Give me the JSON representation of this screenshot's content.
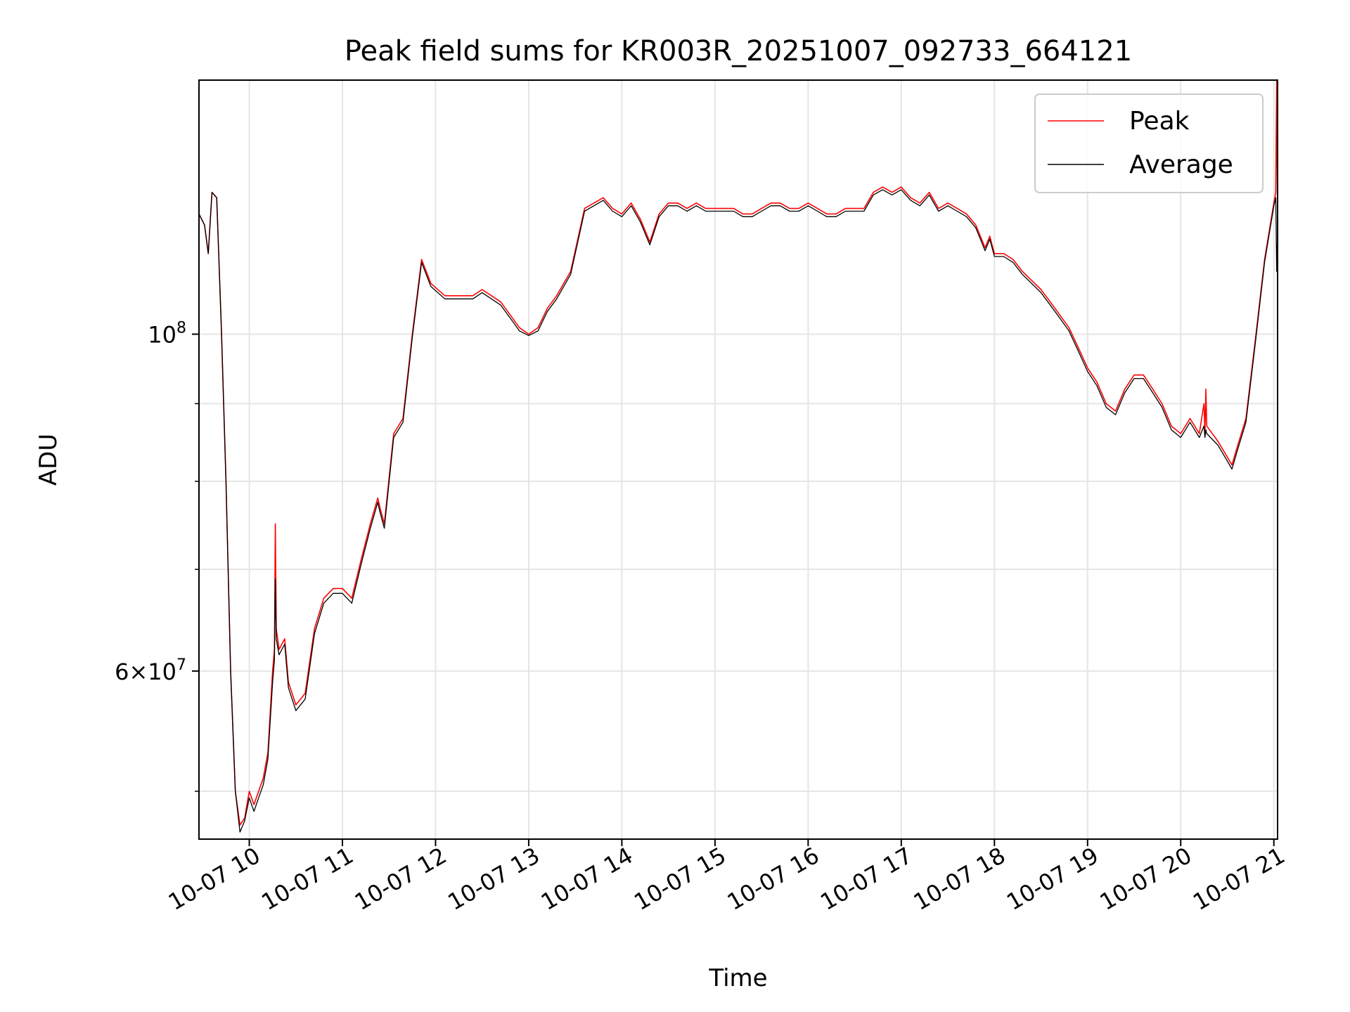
{
  "chart_data": {
    "type": "line",
    "title": "Peak field sums for KR003R_20251007_092733_664121",
    "xlabel": "Time",
    "ylabel": "ADU",
    "x_unit": "hours (10-07)",
    "xlim": [
      9.46,
      21.04
    ],
    "ylim": [
      46500000,
      147000000
    ],
    "y_scale": "log",
    "grid": true,
    "legend_position": "top-right",
    "x_ticks": [
      {
        "value": 10,
        "label": "10-07 10"
      },
      {
        "value": 11,
        "label": "10-07 11"
      },
      {
        "value": 12,
        "label": "10-07 12"
      },
      {
        "value": 13,
        "label": "10-07 13"
      },
      {
        "value": 14,
        "label": "10-07 14"
      },
      {
        "value": 15,
        "label": "10-07 15"
      },
      {
        "value": 16,
        "label": "10-07 16"
      },
      {
        "value": 17,
        "label": "10-07 17"
      },
      {
        "value": 18,
        "label": "10-07 18"
      },
      {
        "value": 19,
        "label": "10-07 19"
      },
      {
        "value": 20,
        "label": "10-07 20"
      },
      {
        "value": 21,
        "label": "10-07 21"
      }
    ],
    "y_major_ticks": [
      {
        "value": 60000000,
        "mantissa": "6",
        "exponent": "7"
      },
      {
        "value": 100000000,
        "mantissa": "",
        "exponent": "8"
      }
    ],
    "y_minor_ticks": [
      50000000,
      70000000,
      80000000,
      90000000
    ],
    "series": [
      {
        "name": "Peak",
        "color": "#ff0000",
        "points": [
          [
            9.46,
            120
          ],
          [
            9.52,
            118
          ],
          [
            9.56,
            113
          ],
          [
            9.6,
            124
          ],
          [
            9.65,
            123
          ],
          [
            9.7,
            101
          ],
          [
            9.75,
            80
          ],
          [
            9.8,
            60
          ],
          [
            9.85,
            50
          ],
          [
            9.9,
            47.5
          ],
          [
            9.95,
            48
          ],
          [
            10.0,
            50
          ],
          [
            10.05,
            49
          ],
          [
            10.1,
            50
          ],
          [
            10.15,
            51
          ],
          [
            10.2,
            53
          ],
          [
            10.25,
            60
          ],
          [
            10.27,
            62
          ],
          [
            10.28,
            75
          ],
          [
            10.29,
            64
          ],
          [
            10.32,
            62
          ],
          [
            10.38,
            63
          ],
          [
            10.42,
            59
          ],
          [
            10.5,
            57
          ],
          [
            10.6,
            58
          ],
          [
            10.7,
            64
          ],
          [
            10.8,
            67
          ],
          [
            10.9,
            68
          ],
          [
            11.0,
            68
          ],
          [
            11.1,
            67
          ],
          [
            11.2,
            71
          ],
          [
            11.3,
            75
          ],
          [
            11.38,
            78
          ],
          [
            11.4,
            77
          ],
          [
            11.45,
            75
          ],
          [
            11.55,
            86
          ],
          [
            11.65,
            88
          ],
          [
            11.75,
            100
          ],
          [
            11.85,
            112
          ],
          [
            11.95,
            108
          ],
          [
            12.1,
            106
          ],
          [
            12.2,
            106
          ],
          [
            12.3,
            106
          ],
          [
            12.4,
            106
          ],
          [
            12.5,
            107
          ],
          [
            12.6,
            106
          ],
          [
            12.7,
            105
          ],
          [
            12.8,
            103
          ],
          [
            12.9,
            101
          ],
          [
            13.0,
            100
          ],
          [
            13.1,
            101
          ],
          [
            13.2,
            104
          ],
          [
            13.3,
            106
          ],
          [
            13.45,
            110
          ],
          [
            13.6,
            121
          ],
          [
            13.7,
            122
          ],
          [
            13.8,
            123
          ],
          [
            13.9,
            121
          ],
          [
            14.0,
            120
          ],
          [
            14.1,
            122
          ],
          [
            14.2,
            119
          ],
          [
            14.3,
            115
          ],
          [
            14.4,
            120
          ],
          [
            14.5,
            122
          ],
          [
            14.6,
            122
          ],
          [
            14.7,
            121
          ],
          [
            14.8,
            122
          ],
          [
            14.9,
            121
          ],
          [
            15.0,
            121
          ],
          [
            15.1,
            121
          ],
          [
            15.2,
            121
          ],
          [
            15.3,
            120
          ],
          [
            15.4,
            120
          ],
          [
            15.5,
            121
          ],
          [
            15.6,
            122
          ],
          [
            15.7,
            122
          ],
          [
            15.8,
            121
          ],
          [
            15.9,
            121
          ],
          [
            16.0,
            122
          ],
          [
            16.1,
            121
          ],
          [
            16.2,
            120
          ],
          [
            16.3,
            120
          ],
          [
            16.4,
            121
          ],
          [
            16.5,
            121
          ],
          [
            16.6,
            121
          ],
          [
            16.7,
            124
          ],
          [
            16.8,
            125
          ],
          [
            16.9,
            124
          ],
          [
            17.0,
            125
          ],
          [
            17.1,
            123
          ],
          [
            17.2,
            122
          ],
          [
            17.3,
            124
          ],
          [
            17.4,
            121
          ],
          [
            17.5,
            122
          ],
          [
            17.6,
            121
          ],
          [
            17.7,
            120
          ],
          [
            17.8,
            118
          ],
          [
            17.9,
            114
          ],
          [
            17.95,
            116
          ],
          [
            18.0,
            113
          ],
          [
            18.1,
            113
          ],
          [
            18.2,
            112
          ],
          [
            18.3,
            110
          ],
          [
            18.5,
            107
          ],
          [
            18.6,
            105
          ],
          [
            18.7,
            103
          ],
          [
            18.8,
            101
          ],
          [
            18.9,
            98
          ],
          [
            19.0,
            95
          ],
          [
            19.1,
            93
          ],
          [
            19.2,
            90
          ],
          [
            19.3,
            89
          ],
          [
            19.4,
            92
          ],
          [
            19.5,
            94
          ],
          [
            19.6,
            94
          ],
          [
            19.7,
            92
          ],
          [
            19.8,
            90
          ],
          [
            19.9,
            87
          ],
          [
            20.0,
            86
          ],
          [
            20.1,
            88
          ],
          [
            20.2,
            86
          ],
          [
            20.25,
            90
          ],
          [
            20.26,
            86
          ],
          [
            20.27,
            92
          ],
          [
            20.28,
            87
          ],
          [
            20.4,
            85
          ],
          [
            20.5,
            83
          ],
          [
            20.55,
            82
          ],
          [
            20.6,
            84
          ],
          [
            20.7,
            88
          ],
          [
            20.8,
            99
          ],
          [
            20.9,
            112
          ],
          [
            21.0,
            122
          ],
          [
            21.02,
            124
          ],
          [
            21.03,
            147
          ],
          [
            21.04,
            117
          ]
        ]
      },
      {
        "name": "Average",
        "color": "#000000",
        "points": [
          [
            9.46,
            120
          ],
          [
            9.52,
            118
          ],
          [
            9.56,
            113
          ],
          [
            9.6,
            124
          ],
          [
            9.65,
            123
          ],
          [
            9.7,
            101
          ],
          [
            9.75,
            80
          ],
          [
            9.8,
            60
          ],
          [
            9.85,
            50
          ],
          [
            9.9,
            47
          ],
          [
            9.95,
            47.8
          ],
          [
            10.0,
            49.5
          ],
          [
            10.05,
            48.5
          ],
          [
            10.1,
            49.5
          ],
          [
            10.15,
            50.5
          ],
          [
            10.2,
            52.5
          ],
          [
            10.25,
            59
          ],
          [
            10.27,
            61
          ],
          [
            10.28,
            69
          ],
          [
            10.29,
            63
          ],
          [
            10.32,
            61.5
          ],
          [
            10.38,
            62.5
          ],
          [
            10.42,
            58.5
          ],
          [
            10.5,
            56.5
          ],
          [
            10.6,
            57.5
          ],
          [
            10.7,
            63.5
          ],
          [
            10.8,
            66.5
          ],
          [
            10.9,
            67.5
          ],
          [
            11.0,
            67.5
          ],
          [
            11.1,
            66.5
          ],
          [
            11.2,
            70.5
          ],
          [
            11.3,
            74.5
          ],
          [
            11.38,
            77.5
          ],
          [
            11.4,
            76.5
          ],
          [
            11.45,
            74.5
          ],
          [
            11.55,
            85.5
          ],
          [
            11.65,
            87.5
          ],
          [
            11.75,
            99.5
          ],
          [
            11.85,
            111.5
          ],
          [
            11.95,
            107.5
          ],
          [
            12.1,
            105.5
          ],
          [
            12.2,
            105.5
          ],
          [
            12.3,
            105.5
          ],
          [
            12.4,
            105.5
          ],
          [
            12.5,
            106.5
          ],
          [
            12.6,
            105.5
          ],
          [
            12.7,
            104.5
          ],
          [
            12.8,
            102.5
          ],
          [
            12.9,
            100.5
          ],
          [
            13.0,
            99.8
          ],
          [
            13.1,
            100.5
          ],
          [
            13.2,
            103.5
          ],
          [
            13.3,
            105.5
          ],
          [
            13.45,
            109.5
          ],
          [
            13.6,
            120.5
          ],
          [
            13.7,
            121.5
          ],
          [
            13.8,
            122.5
          ],
          [
            13.9,
            120.5
          ],
          [
            14.0,
            119.5
          ],
          [
            14.1,
            121.5
          ],
          [
            14.2,
            118.5
          ],
          [
            14.3,
            114.5
          ],
          [
            14.4,
            119.5
          ],
          [
            14.5,
            121.5
          ],
          [
            14.6,
            121.5
          ],
          [
            14.7,
            120.5
          ],
          [
            14.8,
            121.5
          ],
          [
            14.9,
            120.5
          ],
          [
            15.0,
            120.5
          ],
          [
            15.1,
            120.5
          ],
          [
            15.2,
            120.5
          ],
          [
            15.3,
            119.5
          ],
          [
            15.4,
            119.5
          ],
          [
            15.5,
            120.5
          ],
          [
            15.6,
            121.5
          ],
          [
            15.7,
            121.5
          ],
          [
            15.8,
            120.5
          ],
          [
            15.9,
            120.5
          ],
          [
            16.0,
            121.5
          ],
          [
            16.1,
            120.5
          ],
          [
            16.2,
            119.5
          ],
          [
            16.3,
            119.5
          ],
          [
            16.4,
            120.5
          ],
          [
            16.5,
            120.5
          ],
          [
            16.6,
            120.5
          ],
          [
            16.7,
            123.5
          ],
          [
            16.8,
            124.5
          ],
          [
            16.9,
            123.5
          ],
          [
            17.0,
            124.5
          ],
          [
            17.1,
            122.5
          ],
          [
            17.2,
            121.5
          ],
          [
            17.3,
            123.5
          ],
          [
            17.4,
            120.5
          ],
          [
            17.5,
            121.5
          ],
          [
            17.6,
            120.5
          ],
          [
            17.7,
            119.5
          ],
          [
            17.8,
            117.5
          ],
          [
            17.9,
            113.5
          ],
          [
            17.95,
            115.5
          ],
          [
            18.0,
            112.5
          ],
          [
            18.1,
            112.5
          ],
          [
            18.2,
            111.5
          ],
          [
            18.3,
            109.5
          ],
          [
            18.5,
            106.5
          ],
          [
            18.6,
            104.5
          ],
          [
            18.7,
            102.5
          ],
          [
            18.8,
            100.5
          ],
          [
            18.9,
            97.5
          ],
          [
            19.0,
            94.5
          ],
          [
            19.1,
            92.5
          ],
          [
            19.2,
            89.5
          ],
          [
            19.3,
            88.5
          ],
          [
            19.4,
            91.5
          ],
          [
            19.5,
            93.5
          ],
          [
            19.6,
            93.5
          ],
          [
            19.7,
            91.5
          ],
          [
            19.8,
            89.5
          ],
          [
            19.9,
            86.5
          ],
          [
            20.0,
            85.5
          ],
          [
            20.1,
            87.5
          ],
          [
            20.2,
            85.5
          ],
          [
            20.25,
            87
          ],
          [
            20.26,
            85.5
          ],
          [
            20.27,
            86.5
          ],
          [
            20.28,
            86
          ],
          [
            20.4,
            84.5
          ],
          [
            20.5,
            82.5
          ],
          [
            20.55,
            81.5
          ],
          [
            20.6,
            83.5
          ],
          [
            20.7,
            87.5
          ],
          [
            20.8,
            98.5
          ],
          [
            20.9,
            111.5
          ],
          [
            21.0,
            121.5
          ],
          [
            21.02,
            123
          ],
          [
            21.03,
            110
          ],
          [
            21.04,
            117
          ]
        ]
      }
    ]
  }
}
